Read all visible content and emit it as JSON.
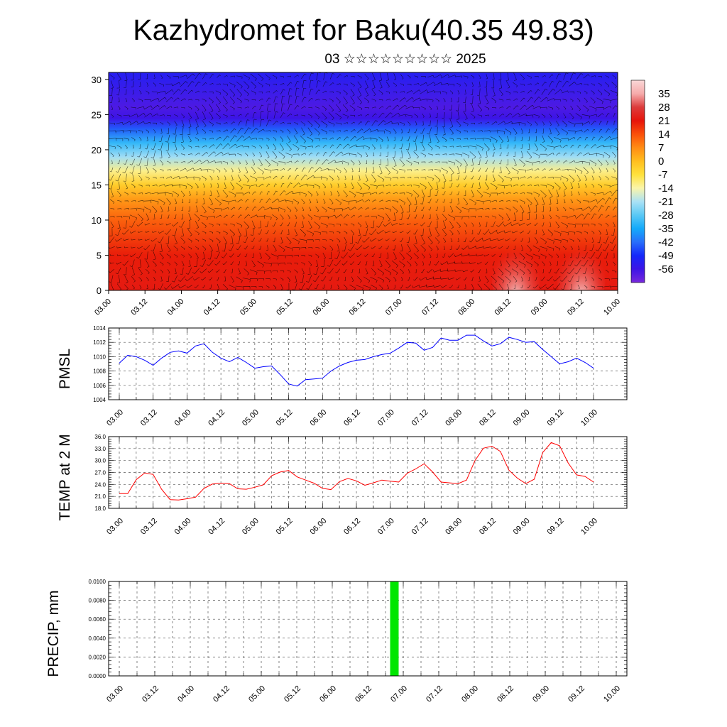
{
  "header": {
    "title": "Kazhydromet for Baku(40.35 49.83)",
    "subtitle": "03 ☆☆☆☆☆☆☆☆☆ 2025"
  },
  "colors": {
    "pmsl_line": "#0000ff",
    "temp_line": "#ff0000",
    "precip_bar": "#00e600",
    "grid": "#555555"
  },
  "chart_data": [
    {
      "type": "heatmap",
      "name": "cross-section",
      "x_ticks": [
        "03.00",
        "03.12",
        "04.00",
        "04.12",
        "05.00",
        "05.12",
        "06.00",
        "06.12",
        "07.00",
        "07.12",
        "08.00",
        "08.12",
        "09.00",
        "09.12",
        "10.00"
      ],
      "y_ticks": [
        "0",
        "5",
        "10",
        "15",
        "20",
        "25",
        "30"
      ],
      "ylim": [
        0,
        31
      ],
      "colorbar_labels": [
        "35",
        "28",
        "21",
        "14",
        "7",
        "0",
        "-7",
        "-14",
        "-21",
        "-28",
        "-35",
        "-42",
        "-49",
        "-56"
      ],
      "colorbar_range": [
        -63,
        42
      ],
      "vertical_profile": [
        {
          "h": 0,
          "v": 22
        },
        {
          "h": 5,
          "v": 20
        },
        {
          "h": 10,
          "v": 12
        },
        {
          "h": 13,
          "v": 5
        },
        {
          "h": 15,
          "v": -3
        },
        {
          "h": 17,
          "v": -12
        },
        {
          "h": 19,
          "v": -22
        },
        {
          "h": 21,
          "v": -32
        },
        {
          "h": 23,
          "v": -44
        },
        {
          "h": 24.5,
          "v": -56
        },
        {
          "h": 26,
          "v": -58
        },
        {
          "h": 31,
          "v": -52
        }
      ],
      "hot_spots": [
        {
          "x": 5.6,
          "h": 0.8,
          "v": 38
        },
        {
          "x": 6.5,
          "h": 0.8,
          "v": 39
        }
      ]
    },
    {
      "type": "line",
      "name": "pmsl",
      "ylabel": "PMSL",
      "ylim": [
        1004,
        1014
      ],
      "y_ticks": [
        "1004",
        "1006",
        "1008",
        "1010",
        "1012",
        "1014"
      ],
      "x_ticks": [
        "03.00",
        "03.12",
        "04.00",
        "04.12",
        "05.00",
        "05.12",
        "06.00",
        "06.12",
        "07.00",
        "07.12",
        "08.00",
        "08.12",
        "09.00",
        "09.12",
        "10.00"
      ],
      "x": [
        0,
        0.125,
        0.25,
        0.375,
        0.5,
        0.625,
        0.75,
        0.875,
        1,
        1.125,
        1.25,
        1.375,
        1.5,
        1.625,
        1.75,
        1.875,
        2,
        2.125,
        2.25,
        2.375,
        2.5,
        2.625,
        2.75,
        2.875,
        3,
        3.125,
        3.25,
        3.375,
        3.5,
        3.625,
        3.75,
        3.875,
        4,
        4.125,
        4.25,
        4.375,
        4.5,
        4.625,
        4.75,
        4.875,
        5,
        5.125,
        5.25,
        5.375,
        5.5,
        5.625,
        5.75,
        5.875,
        6,
        6.125,
        6.25,
        6.375,
        6.5,
        6.625,
        6.75,
        6.875,
        7
      ],
      "values": [
        1009.1,
        1010.2,
        1010.0,
        1009.5,
        1008.8,
        1009.8,
        1010.6,
        1010.8,
        1010.5,
        1011.5,
        1011.8,
        1010.6,
        1009.8,
        1009.3,
        1009.9,
        1009.2,
        1008.4,
        1008.6,
        1008.7,
        1007.5,
        1006.2,
        1005.9,
        1006.8,
        1006.9,
        1007.0,
        1008.0,
        1008.7,
        1009.2,
        1009.5,
        1009.6,
        1010.0,
        1010.3,
        1010.5,
        1011.2,
        1012.0,
        1011.9,
        1010.9,
        1011.3,
        1012.6,
        1012.3,
        1012.3,
        1013.0,
        1013.0,
        1012.2,
        1011.5,
        1011.8,
        1012.7,
        1012.4,
        1012.0,
        1012.1,
        1011.0,
        1010.0,
        1009.0,
        1009.3,
        1009.8,
        1009.2,
        1008.4
      ]
    },
    {
      "type": "line",
      "name": "temp",
      "ylabel": "TEMP at 2 M",
      "ylim": [
        18,
        36
      ],
      "y_ticks": [
        "18.0",
        "21.0",
        "24.0",
        "27.0",
        "30.0",
        "33.0",
        "36.0"
      ],
      "x_ticks": [
        "03.00",
        "03.12",
        "04.00",
        "04.12",
        "05.00",
        "05.12",
        "06.00",
        "06.12",
        "07.00",
        "07.12",
        "08.00",
        "08.12",
        "09.00",
        "09.12",
        "10.00"
      ],
      "x": [
        0,
        0.125,
        0.25,
        0.375,
        0.5,
        0.625,
        0.75,
        0.875,
        1,
        1.125,
        1.25,
        1.375,
        1.5,
        1.625,
        1.75,
        1.875,
        2,
        2.125,
        2.25,
        2.375,
        2.5,
        2.625,
        2.75,
        2.875,
        3,
        3.125,
        3.25,
        3.375,
        3.5,
        3.625,
        3.75,
        3.875,
        4,
        4.125,
        4.25,
        4.375,
        4.5,
        4.625,
        4.75,
        4.875,
        5,
        5.125,
        5.25,
        5.375,
        5.5,
        5.625,
        5.75,
        5.875,
        6,
        6.125,
        6.25,
        6.375,
        6.5,
        6.625,
        6.75,
        6.875,
        7
      ],
      "values": [
        21.7,
        21.7,
        25.2,
        26.9,
        26.5,
        22.8,
        20.2,
        20.1,
        20.4,
        20.8,
        23.0,
        24.1,
        24.3,
        24.2,
        22.9,
        22.8,
        23.3,
        23.9,
        26.2,
        27.1,
        27.5,
        25.9,
        25.1,
        24.3,
        23.0,
        22.7,
        24.7,
        25.5,
        24.9,
        23.8,
        24.4,
        25.1,
        24.8,
        24.6,
        26.8,
        27.9,
        29.2,
        27.1,
        24.6,
        24.4,
        24.2,
        25.1,
        30.0,
        33.1,
        33.6,
        32.3,
        27.6,
        25.6,
        24.2,
        25.3,
        32.0,
        34.5,
        33.7,
        29.4,
        26.4,
        26.0,
        24.6
      ]
    },
    {
      "type": "bar",
      "name": "precip",
      "ylabel": "PRECIP, mm",
      "ylim": [
        0,
        0.01
      ],
      "y_ticks": [
        "0.0000",
        "0.0020",
        "0.0040",
        "0.0060",
        "0.0080",
        "0.0100"
      ],
      "x_ticks": [
        "03.00",
        "03.12",
        "04.00",
        "04.12",
        "05.00",
        "05.12",
        "06.00",
        "06.12",
        "07.00",
        "07.12",
        "08.00",
        "08.12",
        "09.00",
        "09.12",
        "10.00"
      ],
      "bars": [
        {
          "x": 3.875,
          "value": 0.01
        }
      ]
    }
  ]
}
